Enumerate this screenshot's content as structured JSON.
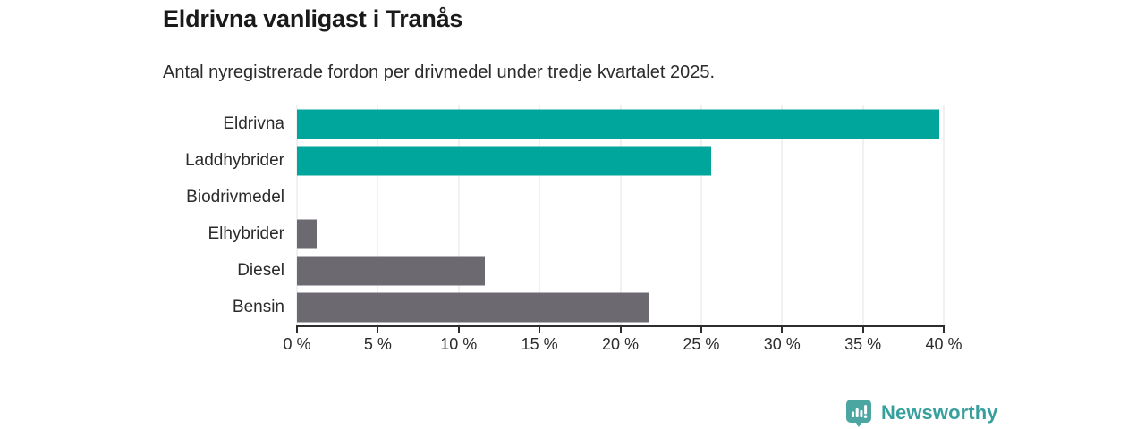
{
  "chart_data": {
    "type": "bar",
    "orientation": "horizontal",
    "title": "Eldrivna vanligast i Tranås",
    "subtitle": "Antal nyregistrerade fordon per drivmedel under tredje kvartalet 2025.",
    "categories": [
      "Eldrivna",
      "Laddhybrider",
      "Biodrivmedel",
      "Elhybrider",
      "Diesel",
      "Bensin"
    ],
    "values": [
      39.7,
      25.6,
      0,
      1.2,
      11.6,
      21.8
    ],
    "unit": "%",
    "bar_colors": [
      "#00a59b",
      "#00a59b",
      "#6c6a70",
      "#6c6a70",
      "#6c6a70",
      "#6c6a70"
    ],
    "xlim": [
      0,
      40
    ],
    "x_ticks": [
      0,
      5,
      10,
      15,
      20,
      25,
      30,
      35,
      40
    ],
    "x_tick_labels": [
      "0 %",
      "5 %",
      "10 %",
      "15 %",
      "20 %",
      "25 %",
      "30 %",
      "35 %",
      "40 %"
    ],
    "grid": true,
    "legend": false,
    "ylabel": "",
    "xlabel": ""
  },
  "colors": {
    "title": "#1a1a1a",
    "text": "#2b2b2b",
    "axis": "#2d2d2d",
    "grid": "#e3e3e3",
    "bar-highlight": "#00a59b",
    "bar-default": "#6c6a70",
    "brand-text": "#38a09c",
    "logo-bg": "#4ba5a1"
  },
  "footer": {
    "brand": "Newsworthy",
    "logo_icon": "bar-chart-speech-bubble-icon"
  }
}
